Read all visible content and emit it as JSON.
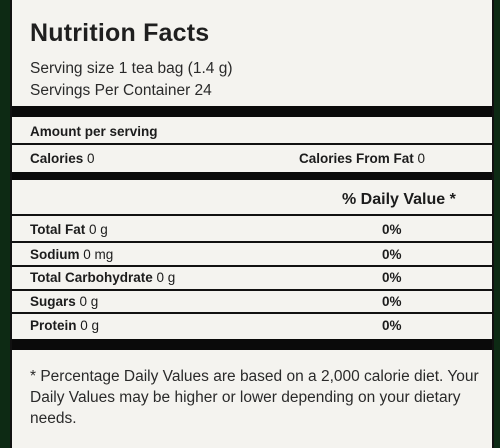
{
  "label": {
    "title": "Nutrition Facts",
    "serving_size": "Serving size 1 tea bag (1.4 g)",
    "servings_per_container": "Servings Per Container 24",
    "amount_per_serving": "Amount per serving",
    "calories_label": "Calories",
    "calories_value": "0",
    "calories_from_fat_label": "Calories From Fat",
    "calories_from_fat_value": "0",
    "daily_value_header": "% Daily Value *",
    "nutrients": [
      {
        "name": "Total Fat",
        "amount": "0 g",
        "dv": "0%"
      },
      {
        "name": "Sodium",
        "amount": "0 mg",
        "dv": "0%"
      },
      {
        "name": "Total Carbohydrate",
        "amount": "0 g",
        "dv": "0%"
      },
      {
        "name": "Sugars",
        "amount": "0 g",
        "dv": "0%"
      },
      {
        "name": "Protein",
        "amount": "0 g",
        "dv": "0%"
      }
    ],
    "footnote": "* Percentage Daily Values are based on a 2,000 calorie diet. Your Daily Values may be higher or lower depending on your dietary needs."
  }
}
